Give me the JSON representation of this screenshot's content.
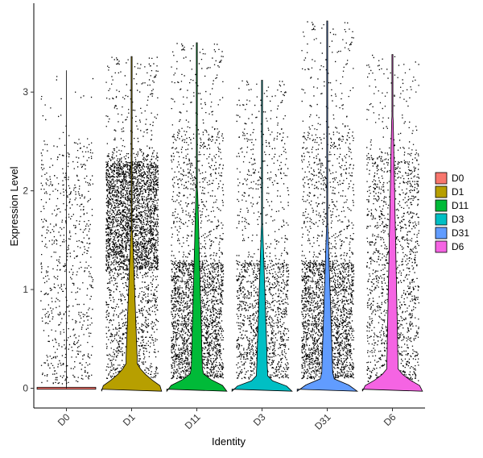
{
  "chart_data": {
    "type": "violin",
    "title": "",
    "xlabel": "Identity",
    "ylabel": "Expression Level",
    "ylim": [
      -0.2,
      3.9
    ],
    "yticks": [
      0,
      1,
      2,
      3
    ],
    "grid": false,
    "legend": {
      "position": "right",
      "entries": [
        "D0",
        "D1",
        "D11",
        "D3",
        "D31",
        "D6"
      ]
    },
    "categories": [
      "D0",
      "D1",
      "D11",
      "D3",
      "D31",
      "D6"
    ],
    "series": [
      {
        "name": "D0",
        "color": "#F8766D",
        "max": 3.22,
        "density": "low",
        "violin_half_width_at_zero": 0.45
      },
      {
        "name": "D1",
        "color": "#B79F00",
        "max": 3.36,
        "density": "high",
        "violin_half_width_at_zero": 0.46
      },
      {
        "name": "D11",
        "color": "#00BA38",
        "max": 3.5,
        "density": "high",
        "violin_half_width_at_zero": 0.46
      },
      {
        "name": "D3",
        "color": "#00BFC4",
        "max": 3.12,
        "density": "medium",
        "violin_half_width_at_zero": 0.46
      },
      {
        "name": "D31",
        "color": "#619CFF",
        "max": 3.72,
        "density": "high",
        "violin_half_width_at_zero": 0.46
      },
      {
        "name": "D6",
        "color": "#F564E3",
        "max": 3.38,
        "density": "medium",
        "violin_half_width_at_zero": 0.46
      }
    ]
  }
}
